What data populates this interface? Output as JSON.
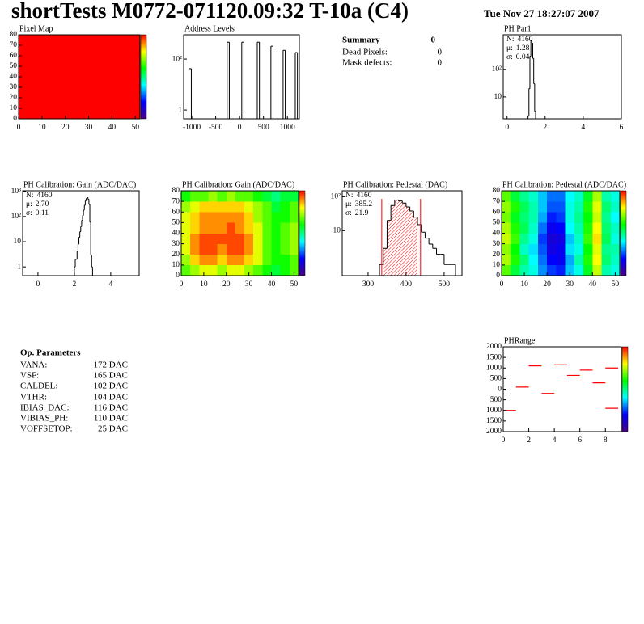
{
  "title": "shortTests M0772-071120.09:32 T-10a (C4)",
  "date": "Tue Nov 27 18:27:07 2007",
  "palette": [
    "#4b0082",
    "#0000ff",
    "#00ffff",
    "#00ff00",
    "#ffff00",
    "#ff0000"
  ],
  "summary": {
    "title": "Summary",
    "total": 0,
    "rows": [
      {
        "label": "Dead Pixels:",
        "value": 0
      },
      {
        "label": "Mask defects:",
        "value": 0
      }
    ]
  },
  "op_parameters": {
    "title": "Op. Parameters",
    "rows": [
      {
        "name": "VANA:",
        "value": "172 DAC"
      },
      {
        "name": "VSF:",
        "value": "165 DAC"
      },
      {
        "name": "CALDEL:",
        "value": "102 DAC"
      },
      {
        "name": "VTHR:",
        "value": "104 DAC"
      },
      {
        "name": "IBIAS_DAC:",
        "value": "116 DAC"
      },
      {
        "name": "VIBIAS_PH:",
        "value": "110 DAC"
      },
      {
        "name": "VOFFSETOP:",
        "value": "25 DAC"
      }
    ]
  },
  "chart_data": [
    {
      "type": "heatmap",
      "title": "Pixel Map",
      "xlim": [
        0,
        52
      ],
      "ylim": [
        0,
        80
      ],
      "xticks": [
        0,
        10,
        20,
        30,
        40,
        50
      ],
      "yticks": [
        0,
        10,
        20,
        30,
        40,
        50,
        60,
        70,
        80
      ],
      "zlim": [
        0,
        10
      ],
      "z": [
        [
          10
        ]
      ]
    },
    {
      "type": "histogram",
      "title": "Address Levels",
      "log_y": true,
      "color": "#000000",
      "xlim": [
        -1170,
        1250
      ],
      "ylim": [
        0.45,
        900
      ],
      "xticks": [
        -1000,
        -500,
        0,
        500,
        1000
      ],
      "yticks": [
        1,
        {
          "value": 100,
          "label": "10²"
        }
      ],
      "bins": [
        -1060,
        -1010,
        -260,
        -215,
        45,
        90,
        370,
        415,
        655,
        700,
        910,
        955,
        1165,
        1210
      ],
      "values": [
        42,
        0,
        460,
        0,
        460,
        0,
        460,
        0,
        320,
        0,
        220,
        0,
        180
      ]
    },
    {
      "type": "histogram",
      "title": "PH Par1",
      "log_y": true,
      "color": "#000000",
      "xlim": [
        -0.2,
        6
      ],
      "ylim": [
        1.6,
        1800
      ],
      "xticks": [
        0,
        2,
        4,
        6
      ],
      "yticks": [
        10,
        {
          "value": 100,
          "label": "10²"
        }
      ],
      "bins": [
        1.1,
        1.15,
        1.2,
        1.25,
        1.3,
        1.35,
        1.4,
        1.45,
        1.5
      ],
      "values": [
        2,
        20,
        300,
        1100,
        900,
        250,
        30,
        3
      ],
      "stats": [
        {
          "label": "N:",
          "value": 4160
        },
        {
          "label": "μ:",
          "value": 1.28
        },
        {
          "label": "σ:",
          "value": 0.04
        }
      ]
    },
    {
      "type": "histogram",
      "title": "PH Calibration: Gain (ADC/DAC)",
      "log_y": true,
      "color": "#000000",
      "xlim": [
        -0.84,
        5.56
      ],
      "ylim": [
        0.45,
        1050
      ],
      "xticks": [
        0,
        2,
        4
      ],
      "yticks": [
        1,
        10,
        {
          "value": 100,
          "label": "10²"
        },
        {
          "value": 1000,
          "label": "10³"
        }
      ],
      "bins": [
        2.0,
        2.05,
        2.1,
        2.15,
        2.2,
        2.25,
        2.3,
        2.35,
        2.4,
        2.45,
        2.5,
        2.55,
        2.6,
        2.65,
        2.7,
        2.75,
        2.8,
        2.85,
        2.9,
        2.95,
        3.0
      ],
      "values": [
        1,
        2,
        2,
        4,
        8,
        15,
        25,
        40,
        70,
        110,
        180,
        280,
        420,
        520,
        560,
        480,
        300,
        60,
        3,
        1
      ],
      "stats": [
        {
          "label": "N:",
          "value": 4160
        },
        {
          "label": "μ:",
          "value": 2.7,
          "value_label": "2.70"
        },
        {
          "label": "σ:",
          "value": 0.11
        }
      ]
    },
    {
      "type": "heatmap",
      "title": "PH Calibration: Gain (ADC/DAC)",
      "xlim": [
        0,
        52
      ],
      "ylim": [
        0,
        80
      ],
      "xticks": [
        0,
        10,
        20,
        30,
        40,
        50
      ],
      "yticks": [
        0,
        10,
        20,
        30,
        40,
        50,
        60,
        70,
        80
      ],
      "zlim": [
        2.0,
        2.9
      ],
      "z": [
        [
          2.6,
          2.65,
          2.7,
          2.7,
          2.65,
          2.7,
          2.7,
          2.65,
          2.6,
          2.55,
          2.5,
          2.55,
          2.6
        ],
        [
          2.65,
          2.75,
          2.8,
          2.8,
          2.75,
          2.8,
          2.8,
          2.75,
          2.7,
          2.6,
          2.55,
          2.55,
          2.6
        ],
        [
          2.7,
          2.8,
          2.85,
          2.85,
          2.8,
          2.85,
          2.85,
          2.8,
          2.7,
          2.6,
          2.55,
          2.6,
          2.65
        ],
        [
          2.7,
          2.8,
          2.85,
          2.85,
          2.85,
          2.85,
          2.85,
          2.8,
          2.7,
          2.6,
          2.55,
          2.6,
          2.65
        ],
        [
          2.7,
          2.75,
          2.8,
          2.8,
          2.8,
          2.85,
          2.8,
          2.75,
          2.7,
          2.6,
          2.55,
          2.6,
          2.65
        ],
        [
          2.7,
          2.75,
          2.8,
          2.8,
          2.8,
          2.8,
          2.8,
          2.75,
          2.65,
          2.6,
          2.55,
          2.55,
          2.6
        ],
        [
          2.65,
          2.7,
          2.75,
          2.75,
          2.75,
          2.75,
          2.75,
          2.7,
          2.65,
          2.6,
          2.5,
          2.55,
          2.6
        ],
        [
          2.55,
          2.6,
          2.6,
          2.65,
          2.6,
          2.65,
          2.6,
          2.6,
          2.55,
          2.5,
          2.45,
          2.5,
          2.5
        ]
      ]
    },
    {
      "type": "histogram",
      "title": "PH Calibration: Pedestal (DAC)",
      "log_y": true,
      "color": "#000000",
      "cut_color": "#ff0000",
      "xlim": [
        232,
        547
      ],
      "ylim": [
        0.47,
        150
      ],
      "xticks": [
        300,
        400,
        500
      ],
      "yticks": [
        10,
        {
          "value": 100,
          "label": "10²"
        }
      ],
      "bins": [
        330,
        340,
        350,
        360,
        370,
        380,
        390,
        400,
        410,
        420,
        430,
        440,
        450,
        460,
        470,
        480,
        490,
        500,
        510,
        520,
        530
      ],
      "values": [
        1,
        3,
        20,
        55,
        80,
        75,
        65,
        50,
        38,
        25,
        15,
        9,
        6,
        4,
        3,
        2,
        2,
        1,
        1,
        1
      ],
      "cut_lines": [
        336,
        438
      ],
      "stats": [
        {
          "label": "N:",
          "value": 4160
        },
        {
          "label": "μ:",
          "value": 385.2,
          "color": "#ff0000"
        },
        {
          "label": "σ:",
          "value": 21.9,
          "color": "#ff0000"
        }
      ]
    },
    {
      "type": "heatmap",
      "title": "PH Calibration: Pedestal (ADC/DAC)",
      "xlim": [
        0,
        52
      ],
      "ylim": [
        0,
        80
      ],
      "xticks": [
        0,
        10,
        20,
        30,
        40,
        50
      ],
      "yticks": [
        0,
        10,
        20,
        30,
        40,
        50,
        60,
        70,
        80
      ],
      "zlim": [
        330,
        420
      ],
      "z": [
        [
          390,
          380,
          372,
          368,
          358,
          352,
          350,
          362,
          368,
          382,
          398,
          372,
          368
        ],
        [
          396,
          386,
          376,
          366,
          356,
          348,
          346,
          360,
          372,
          386,
          402,
          376,
          370
        ],
        [
          394,
          384,
          370,
          364,
          354,
          344,
          346,
          364,
          368,
          384,
          400,
          374,
          372
        ],
        [
          398,
          388,
          374,
          368,
          352,
          342,
          344,
          362,
          370,
          388,
          404,
          378,
          368
        ],
        [
          396,
          386,
          378,
          370,
          356,
          346,
          348,
          366,
          372,
          386,
          402,
          376,
          370
        ],
        [
          392,
          382,
          376,
          372,
          360,
          350,
          352,
          368,
          374,
          384,
          398,
          374,
          366
        ],
        [
          394,
          386,
          378,
          372,
          362,
          354,
          354,
          368,
          372,
          386,
          400,
          376,
          370
        ],
        [
          390,
          380,
          374,
          370,
          362,
          356,
          356,
          366,
          370,
          382,
          396,
          372,
          368
        ]
      ]
    },
    {
      "type": "segments",
      "title": "PHRange",
      "color": "#ff0000",
      "xlim": [
        0,
        9.25
      ],
      "ylim": [
        -2000,
        2000
      ],
      "zlim": [
        0,
        1
      ],
      "bin_width": 1,
      "xticks": [
        0,
        2,
        4,
        6,
        8
      ],
      "yticks": [
        {
          "value": -2000,
          "label": "2000"
        },
        {
          "value": -1500,
          "label": "1500"
        },
        {
          "value": -1000,
          "label": "1000"
        },
        {
          "value": -500,
          "label": "500"
        },
        0,
        500,
        1000,
        1500,
        2000
      ],
      "x": [
        0.5,
        1.5,
        2.5,
        3.5,
        4.5,
        5.5,
        6.5,
        7.5,
        8.5,
        8.5
      ],
      "values": [
        -1000,
        100,
        1100,
        -200,
        1150,
        650,
        900,
        300,
        1000,
        -900
      ]
    }
  ]
}
